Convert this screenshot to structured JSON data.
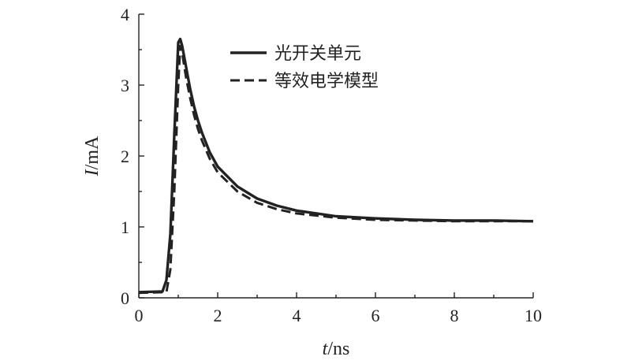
{
  "chart_data": {
    "type": "line",
    "xlabel_italic": "t",
    "xlabel_unit": "/ns",
    "ylabel_italic": "I",
    "ylabel_unit": "/mA",
    "xlim": [
      0,
      10
    ],
    "ylim": [
      0,
      4
    ],
    "x_ticks": [
      "0",
      "2",
      "4",
      "6",
      "8",
      "10"
    ],
    "y_ticks": [
      "0",
      "1",
      "2",
      "3",
      "4"
    ],
    "grid": false,
    "legend_position": "top-right",
    "series": [
      {
        "name": "光开关单元",
        "style": "solid",
        "color": "#222222",
        "x": [
          0,
          0.6,
          0.7,
          0.8,
          0.9,
          1.0,
          1.05,
          1.1,
          1.2,
          1.3,
          1.4,
          1.5,
          1.6,
          1.8,
          2.0,
          2.5,
          3.0,
          3.5,
          4.0,
          5.0,
          6.0,
          7.0,
          8.0,
          9.0,
          10.0
        ],
        "y": [
          0.08,
          0.09,
          0.25,
          0.9,
          2.3,
          3.6,
          3.65,
          3.55,
          3.25,
          2.95,
          2.7,
          2.5,
          2.33,
          2.05,
          1.85,
          1.57,
          1.4,
          1.3,
          1.23,
          1.15,
          1.12,
          1.1,
          1.09,
          1.09,
          1.08
        ]
      },
      {
        "name": "等效电学模型",
        "style": "dashed",
        "color": "#222222",
        "x": [
          0,
          0.7,
          0.8,
          0.9,
          1.0,
          1.05,
          1.1,
          1.2,
          1.3,
          1.4,
          1.5,
          1.6,
          1.8,
          2.0,
          2.5,
          3.0,
          3.5,
          4.0,
          5.0,
          6.0,
          7.0,
          8.0,
          9.0,
          10.0
        ],
        "y": [
          0.07,
          0.08,
          0.4,
          1.5,
          3.0,
          3.55,
          3.45,
          3.1,
          2.82,
          2.58,
          2.38,
          2.22,
          1.96,
          1.77,
          1.5,
          1.34,
          1.25,
          1.19,
          1.13,
          1.1,
          1.09,
          1.08,
          1.08,
          1.08
        ]
      }
    ]
  }
}
